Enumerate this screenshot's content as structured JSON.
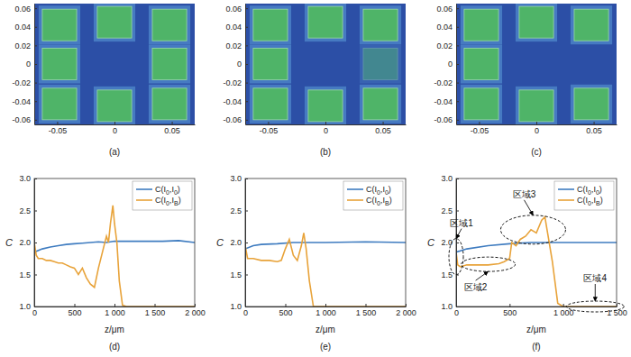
{
  "chart_data": [
    {
      "type": "image",
      "caption": "(a)",
      "xlim": [
        -0.07,
        0.07
      ],
      "ylim": [
        -0.065,
        0.065
      ],
      "xticks": [
        -0.05,
        0,
        0.05
      ],
      "yticks": [
        -0.06,
        -0.04,
        -0.02,
        0,
        0.02,
        0.04,
        0.06
      ],
      "squares": [
        {
          "x": -0.048,
          "y": 0.042,
          "width": 0.03,
          "height": 0.034,
          "intensity": 1
        },
        {
          "x": 0,
          "y": 0.045,
          "width": 0.03,
          "height": 0.034,
          "intensity": 1
        },
        {
          "x": 0.048,
          "y": 0.042,
          "width": 0.03,
          "height": 0.034,
          "intensity": 1
        },
        {
          "x": -0.048,
          "y": 0,
          "width": 0.03,
          "height": 0.034,
          "intensity": 1
        },
        {
          "x": 0.048,
          "y": 0,
          "width": 0.03,
          "height": 0.034,
          "intensity": 1
        },
        {
          "x": -0.048,
          "y": -0.043,
          "width": 0.03,
          "height": 0.034,
          "intensity": 1
        },
        {
          "x": 0,
          "y": -0.045,
          "width": 0.03,
          "height": 0.034,
          "intensity": 1
        },
        {
          "x": 0.048,
          "y": -0.043,
          "width": 0.03,
          "height": 0.034,
          "intensity": 1
        }
      ]
    },
    {
      "type": "image",
      "caption": "(b)",
      "xlim": [
        -0.07,
        0.07
      ],
      "ylim": [
        -0.065,
        0.065
      ],
      "xticks": [
        -0.05,
        0,
        0.05
      ],
      "yticks": [
        -0.06,
        -0.04,
        -0.02,
        0,
        0.02,
        0.04,
        0.06
      ],
      "squares": [
        {
          "x": -0.048,
          "y": 0.042,
          "width": 0.03,
          "height": 0.034,
          "intensity": 1
        },
        {
          "x": 0,
          "y": 0.045,
          "width": 0.03,
          "height": 0.034,
          "intensity": 1
        },
        {
          "x": 0.048,
          "y": 0.042,
          "width": 0.03,
          "height": 0.034,
          "intensity": 1
        },
        {
          "x": -0.048,
          "y": 0,
          "width": 0.03,
          "height": 0.034,
          "intensity": 1
        },
        {
          "x": 0.048,
          "y": 0,
          "width": 0.03,
          "height": 0.034,
          "intensity": 0.45
        },
        {
          "x": -0.048,
          "y": -0.043,
          "width": 0.03,
          "height": 0.034,
          "intensity": 1
        },
        {
          "x": 0,
          "y": -0.045,
          "width": 0.03,
          "height": 0.034,
          "intensity": 1
        },
        {
          "x": 0.048,
          "y": -0.043,
          "width": 0.03,
          "height": 0.034,
          "intensity": 1
        }
      ]
    },
    {
      "type": "image",
      "caption": "(c)",
      "xlim": [
        -0.07,
        0.07
      ],
      "ylim": [
        -0.065,
        0.065
      ],
      "xticks": [
        -0.05,
        0,
        0.05
      ],
      "yticks": [
        -0.06,
        -0.04,
        -0.02,
        0,
        0.02,
        0.04,
        0.06
      ],
      "squares": [
        {
          "x": -0.048,
          "y": 0.042,
          "width": 0.03,
          "height": 0.034,
          "intensity": 1
        },
        {
          "x": 0,
          "y": 0.045,
          "width": 0.03,
          "height": 0.034,
          "intensity": 1
        },
        {
          "x": 0.048,
          "y": 0.042,
          "width": 0.03,
          "height": 0.034,
          "intensity": 1
        },
        {
          "x": -0.048,
          "y": 0,
          "width": 0.03,
          "height": 0.034,
          "intensity": 1
        },
        {
          "x": -0.048,
          "y": -0.043,
          "width": 0.03,
          "height": 0.034,
          "intensity": 1
        },
        {
          "x": 0,
          "y": -0.045,
          "width": 0.03,
          "height": 0.034,
          "intensity": 1
        },
        {
          "x": 0.048,
          "y": -0.043,
          "width": 0.03,
          "height": 0.034,
          "intensity": 1
        }
      ]
    },
    {
      "type": "line",
      "caption": "(d)",
      "xlabel": "z/μm",
      "ylabel": "C",
      "xlim": [
        0,
        2000
      ],
      "ylim": [
        1,
        3
      ],
      "xticks": [
        0,
        500,
        {
          "value": 1000,
          "label": "1 000"
        },
        {
          "value": 1500,
          "label": "1 500"
        },
        {
          "value": 2000,
          "label": "2 000"
        }
      ],
      "yticks": [
        {
          "value": 1,
          "label": "1.0"
        },
        1.5,
        {
          "value": 2,
          "label": "2.0"
        },
        2.5,
        {
          "value": 3,
          "label": "3.0"
        }
      ],
      "legend": "upper right",
      "series": [
        {
          "name": "C(I0,I0)",
          "color": "#3f7cc0",
          "x": [
            0,
            100,
            200,
            300,
            400,
            500,
            600,
            700,
            800,
            900,
            1000,
            1200,
            1400,
            1600,
            1800,
            2000
          ],
          "values": [
            1.85,
            1.9,
            1.93,
            1.95,
            1.97,
            1.98,
            1.99,
            2.0,
            2.01,
            2.0,
            2.02,
            2.02,
            2.02,
            2.02,
            2.03,
            2.0
          ]
        },
        {
          "name": "C(I0,IB)",
          "color": "#e8a33a",
          "x": [
            0,
            25,
            50,
            100,
            150,
            200,
            250,
            300,
            350,
            400,
            450,
            500,
            550,
            600,
            650,
            700,
            750,
            800,
            850,
            900,
            925,
            950,
            980,
            1000,
            1030,
            1060,
            1100,
            1150,
            1500,
            2000
          ],
          "values": [
            2.0,
            1.8,
            1.75,
            1.75,
            1.72,
            1.72,
            1.7,
            1.68,
            1.68,
            1.65,
            1.62,
            1.6,
            1.5,
            1.6,
            1.45,
            1.35,
            1.3,
            1.6,
            1.85,
            2.1,
            2.0,
            2.3,
            2.58,
            2.3,
            2.0,
            1.4,
            1.02,
            1.0,
            1.0,
            1.0
          ]
        }
      ]
    },
    {
      "type": "line",
      "caption": "(e)",
      "xlabel": "z/μm",
      "ylabel": "C",
      "xlim": [
        0,
        2000
      ],
      "ylim": [
        1,
        3
      ],
      "xticks": [
        0,
        500,
        {
          "value": 1000,
          "label": "1 000"
        },
        {
          "value": 1500,
          "label": "1 500"
        },
        {
          "value": 2000,
          "label": "2 000"
        }
      ],
      "yticks": [
        {
          "value": 1,
          "label": "1.0"
        },
        1.5,
        {
          "value": 2,
          "label": "2.0"
        },
        2.5,
        {
          "value": 3,
          "label": "3.0"
        }
      ],
      "legend": "upper right",
      "series": [
        {
          "name": "C(I0,I0)",
          "color": "#3f7cc0",
          "x": [
            0,
            100,
            200,
            400,
            600,
            800,
            1000,
            1500,
            2000
          ],
          "values": [
            1.9,
            1.95,
            1.97,
            1.98,
            2.0,
            2.0,
            2.0,
            2.01,
            2.0
          ]
        },
        {
          "name": "C(I0,IB)",
          "color": "#e8a33a",
          "x": [
            0,
            30,
            100,
            200,
            300,
            400,
            450,
            500,
            550,
            600,
            650,
            700,
            730,
            760,
            800,
            850,
            2000
          ],
          "values": [
            1.95,
            1.75,
            1.75,
            1.72,
            1.72,
            1.7,
            1.72,
            1.9,
            2.05,
            1.8,
            1.72,
            1.95,
            2.15,
            1.9,
            1.4,
            1.0,
            1.0
          ]
        }
      ]
    },
    {
      "type": "line",
      "caption": "(f)",
      "xlabel": "z/μm",
      "ylabel": "C",
      "xlim": [
        0,
        1500
      ],
      "ylim": [
        1,
        3
      ],
      "xticks": [
        0,
        500,
        {
          "value": 1000,
          "label": "1 000"
        },
        {
          "value": 1500,
          "label": "1 500"
        }
      ],
      "yticks": [
        {
          "value": 1,
          "label": "1.0"
        },
        1.5,
        {
          "value": 2,
          "label": "2.0"
        },
        2.5,
        {
          "value": 3,
          "label": "3.0"
        }
      ],
      "legend": "upper right",
      "series": [
        {
          "name": "C(I0,I0)",
          "color": "#3f7cc0",
          "x": [
            0,
            100,
            300,
            500,
            700,
            1000,
            1500
          ],
          "values": [
            1.85,
            1.9,
            1.95,
            1.98,
            2.0,
            2.0,
            2.0
          ]
        },
        {
          "name": "C(I0,IB)",
          "color": "#e8a33a",
          "x": [
            0,
            15,
            40,
            100,
            200,
            300,
            400,
            450,
            500,
            520,
            560,
            600,
            650,
            700,
            750,
            800,
            830,
            860,
            900,
            950,
            1000,
            1500
          ],
          "values": [
            1.85,
            1.65,
            1.62,
            1.65,
            1.65,
            1.65,
            1.67,
            1.7,
            1.75,
            2.0,
            1.95,
            2.05,
            2.1,
            2.2,
            2.15,
            2.35,
            2.4,
            2.1,
            1.7,
            1.05,
            1.0,
            1.0
          ]
        }
      ],
      "annotations": [
        {
          "text": "区域1",
          "x": 0,
          "y": 1.78
        },
        {
          "text": "区域2",
          "x": 300,
          "y": 1.66
        },
        {
          "text": "区域3",
          "x": 720,
          "y": 2.2
        },
        {
          "text": "区域4",
          "x": 1300,
          "y": 1.0
        }
      ]
    }
  ]
}
